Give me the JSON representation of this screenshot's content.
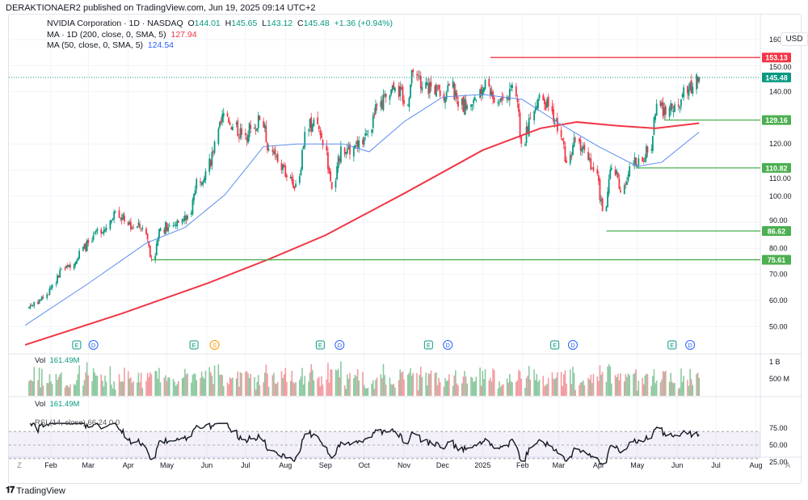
{
  "header": {
    "published": "DERAKTIONAER2 published on TradingView.com, Jun 19, 2025 09:14 UTC+2"
  },
  "legend": {
    "symbol": "NVIDIA Corporation · 1D · NASDAQ",
    "open_label": "O",
    "open": "144.01",
    "high_label": "H",
    "high": "145.65",
    "low_label": "L",
    "low": "143.12",
    "close_label": "C",
    "close": "145.48",
    "change": "+1.36 (+0.94%)",
    "ma200_label": "MA · 1D (200, close, 0, SMA, 5)",
    "ma200_value": "127.94",
    "ma50_label": "MA (50, close, 0, SMA, 5)",
    "ma50_value": "124.54"
  },
  "currency": "USD",
  "price_axis": {
    "ticks": [
      "160.00",
      "150.00",
      "140.00",
      "120.00",
      "110.00",
      "100.00",
      "90.00",
      "80.00",
      "70.00",
      "60.00",
      "50.00"
    ],
    "tick_values": [
      160,
      150,
      140,
      120,
      110,
      100,
      90,
      80,
      70,
      60,
      50
    ],
    "min": 46,
    "max": 163
  },
  "levels": [
    {
      "value": "153.13",
      "from": "2025-01-07",
      "color": "#f23645"
    },
    {
      "value": "129.16",
      "from": "2025-05-22",
      "color": "#4caf50"
    },
    {
      "value": "110.82",
      "from": "2025-04-30",
      "color": "#4caf50"
    },
    {
      "value": "86.62",
      "from": "2025-04-07",
      "color": "#4caf50"
    },
    {
      "value": "75.61",
      "from": "2024-04-19",
      "color": "#4caf50"
    }
  ],
  "last_price": {
    "value": "145.48",
    "color": "#089981"
  },
  "colors": {
    "up": "#089981",
    "down": "#f23645",
    "ma200": "#f23645",
    "ma50": "#5b8def",
    "rsi_band": "#7e57c2"
  },
  "time_axis": {
    "labels": [
      "Feb",
      "Mar",
      "Apr",
      "May",
      "Jun",
      "Jul",
      "Aug",
      "Sep",
      "Oct",
      "Nov",
      "Dec",
      "2025",
      "Feb",
      "Mar",
      "Apr",
      "May",
      "Jun",
      "Jul",
      "Aug"
    ],
    "dates": [
      "2024-02-01",
      "2024-03-01",
      "2024-04-01",
      "2024-05-01",
      "2024-06-01",
      "2024-07-01",
      "2024-08-01",
      "2024-09-01",
      "2024-10-01",
      "2024-11-01",
      "2024-12-01",
      "2025-01-01",
      "2025-02-01",
      "2025-03-01",
      "2025-04-01",
      "2025-05-01",
      "2025-06-01",
      "2025-07-01",
      "2025-08-01"
    ]
  },
  "events": [
    {
      "type": "E",
      "date": "2024-02-21"
    },
    {
      "type": "D",
      "date": "2024-03-05"
    },
    {
      "type": "E",
      "date": "2024-05-22"
    },
    {
      "type": "S",
      "date": "2024-06-07"
    },
    {
      "type": "E",
      "date": "2024-08-28"
    },
    {
      "type": "D",
      "date": "2024-09-12"
    },
    {
      "type": "E",
      "date": "2024-11-20"
    },
    {
      "type": "D",
      "date": "2024-12-05"
    },
    {
      "type": "E",
      "date": "2025-02-26"
    },
    {
      "type": "D",
      "date": "2025-03-12"
    },
    {
      "type": "E",
      "date": "2025-05-28"
    },
    {
      "type": "D",
      "date": "2025-06-11"
    }
  ],
  "chart_data": {
    "type": "candlestick",
    "weekly_closes": [
      [
        "2024-01-12",
        57
      ],
      [
        "2024-01-19",
        59.5
      ],
      [
        "2024-01-26",
        61
      ],
      [
        "2024-02-02",
        66
      ],
      [
        "2024-02-09",
        72
      ],
      [
        "2024-02-16",
        72.6
      ],
      [
        "2024-02-23",
        79
      ],
      [
        "2024-03-01",
        82
      ],
      [
        "2024-03-08",
        87.5
      ],
      [
        "2024-03-15",
        87.8
      ],
      [
        "2024-03-22",
        94.2
      ],
      [
        "2024-03-29",
        90.3
      ],
      [
        "2024-04-05",
        88
      ],
      [
        "2024-04-12",
        88
      ],
      [
        "2024-04-19",
        76.2
      ],
      [
        "2024-04-26",
        87.7
      ],
      [
        "2024-05-03",
        88.7
      ],
      [
        "2024-05-10",
        89.8
      ],
      [
        "2024-05-17",
        92.5
      ],
      [
        "2024-05-24",
        106.5
      ],
      [
        "2024-05-31",
        109.6
      ],
      [
        "2024-06-07",
        120.9
      ],
      [
        "2024-06-14",
        131.9
      ],
      [
        "2024-06-21",
        126.6
      ],
      [
        "2024-06-28",
        123.5
      ],
      [
        "2024-07-05",
        125.8
      ],
      [
        "2024-07-12",
        129.2
      ],
      [
        "2024-07-19",
        117.9
      ],
      [
        "2024-07-26",
        113.1
      ],
      [
        "2024-08-02",
        107.3
      ],
      [
        "2024-08-09",
        104.8
      ],
      [
        "2024-08-16",
        124.6
      ],
      [
        "2024-08-23",
        129.4
      ],
      [
        "2024-08-30",
        119.4
      ],
      [
        "2024-09-06",
        102.8
      ],
      [
        "2024-09-13",
        119.1
      ],
      [
        "2024-09-20",
        116
      ],
      [
        "2024-09-27",
        121.4
      ],
      [
        "2024-10-04",
        124.9
      ],
      [
        "2024-10-11",
        134.8
      ],
      [
        "2024-10-18",
        138
      ],
      [
        "2024-10-25",
        141.5
      ],
      [
        "2024-11-01",
        135.4
      ],
      [
        "2024-11-08",
        147.6
      ],
      [
        "2024-11-15",
        141.9
      ],
      [
        "2024-11-22",
        141.9
      ],
      [
        "2024-11-29",
        138.3
      ],
      [
        "2024-12-06",
        142.4
      ],
      [
        "2024-12-13",
        134.3
      ],
      [
        "2024-12-20",
        134.7
      ],
      [
        "2024-12-27",
        137
      ],
      [
        "2025-01-03",
        144.5
      ],
      [
        "2025-01-10",
        135.9
      ],
      [
        "2025-01-17",
        137.7
      ],
      [
        "2025-01-24",
        142.6
      ],
      [
        "2025-01-31",
        120.1
      ],
      [
        "2025-02-07",
        129.8
      ],
      [
        "2025-02-14",
        138.9
      ],
      [
        "2025-02-21",
        134.4
      ],
      [
        "2025-02-28",
        124.9
      ],
      [
        "2025-03-07",
        112.7
      ],
      [
        "2025-03-14",
        121.7
      ],
      [
        "2025-03-21",
        117.7
      ],
      [
        "2025-03-28",
        109.7
      ],
      [
        "2025-04-04",
        94.3
      ],
      [
        "2025-04-11",
        110.9
      ],
      [
        "2025-04-18",
        101.5
      ],
      [
        "2025-04-25",
        111.4
      ],
      [
        "2025-05-02",
        114.5
      ],
      [
        "2025-05-09",
        116.7
      ],
      [
        "2025-05-16",
        135.4
      ],
      [
        "2025-05-23",
        131.3
      ],
      [
        "2025-05-30",
        135.1
      ],
      [
        "2025-06-06",
        141.7
      ],
      [
        "2025-06-13",
        141.97
      ],
      [
        "2025-06-18",
        145.48
      ]
    ],
    "ma200": [
      [
        "2024-01-12",
        43
      ],
      [
        "2024-03-27",
        55
      ],
      [
        "2024-06-01",
        66.5
      ],
      [
        "2024-07-20",
        76
      ],
      [
        "2024-09-01",
        85
      ],
      [
        "2024-11-01",
        101
      ],
      [
        "2025-01-01",
        117.6
      ],
      [
        "2025-02-15",
        126
      ],
      [
        "2025-03-15",
        128.4
      ],
      [
        "2025-04-15",
        127
      ],
      [
        "2025-05-15",
        126
      ],
      [
        "2025-06-18",
        127.94
      ]
    ],
    "ma50": [
      [
        "2024-01-12",
        50.5
      ],
      [
        "2024-03-01",
        66.5
      ],
      [
        "2024-04-15",
        82
      ],
      [
        "2024-05-15",
        88
      ],
      [
        "2024-06-15",
        100.5
      ],
      [
        "2024-07-15",
        119
      ],
      [
        "2024-08-10",
        120
      ],
      [
        "2024-09-15",
        120
      ],
      [
        "2024-10-05",
        117
      ],
      [
        "2024-11-01",
        128.5
      ],
      [
        "2024-12-01",
        138
      ],
      [
        "2025-01-01",
        139
      ],
      [
        "2025-02-01",
        137
      ],
      [
        "2025-03-01",
        128
      ],
      [
        "2025-04-01",
        119
      ],
      [
        "2025-05-01",
        111.4
      ],
      [
        "2025-05-20",
        113
      ],
      [
        "2025-06-18",
        124.54
      ]
    ]
  },
  "volume": {
    "label": "Vol",
    "value": "161.49M",
    "ticks": [
      "1 B",
      "500 M"
    ]
  },
  "volume2": {
    "label": "Vol",
    "value": "161.49M"
  },
  "rsi": {
    "label": "RSI (14, close)",
    "value": "66.24",
    "extra": "0 0",
    "ticks": [
      "75.00",
      "50.00",
      "25.00"
    ]
  },
  "footer": {
    "brand": "TradingView",
    "z": "Z",
    "a": "A"
  }
}
